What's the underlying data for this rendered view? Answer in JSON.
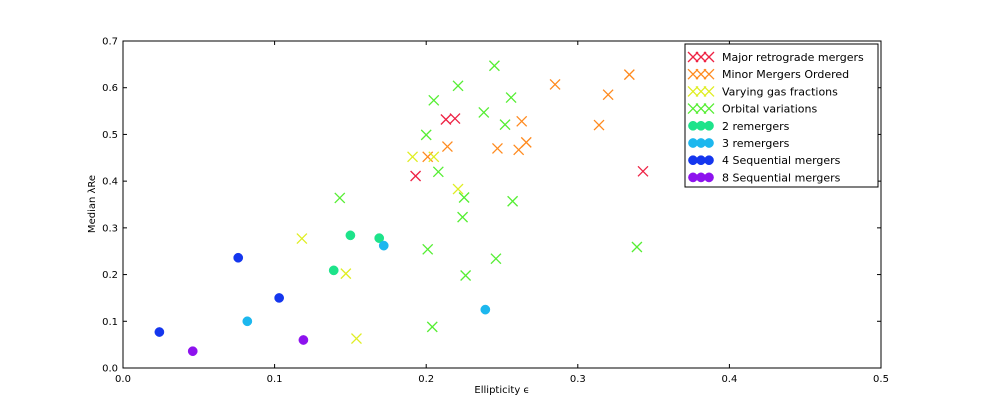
{
  "chart_data": {
    "type": "scatter",
    "title": "",
    "xlabel": "Ellipticity ϵ",
    "ylabel": "Median λRe",
    "xlim": [
      0.0,
      0.5
    ],
    "ylim": [
      0.0,
      0.7
    ],
    "x_ticks": [
      "0.0",
      "0.1",
      "0.2",
      "0.3",
      "0.4",
      "0.5"
    ],
    "y_ticks": [
      "0.0",
      "0.1",
      "0.2",
      "0.3",
      "0.4",
      "0.5",
      "0.6",
      "0.7"
    ],
    "grid": false,
    "legend_position": "top-right",
    "series": [
      {
        "name": "Major retrograde mergers",
        "marker": "x",
        "color": "#ee2244",
        "points": [
          [
            0.193,
            0.411
          ],
          [
            0.213,
            0.532
          ],
          [
            0.219,
            0.534
          ],
          [
            0.343,
            0.421
          ]
        ]
      },
      {
        "name": "Minor Mergers Ordered",
        "marker": "x",
        "color": "#ff8a1e",
        "points": [
          [
            0.201,
            0.452
          ],
          [
            0.214,
            0.474
          ],
          [
            0.247,
            0.47
          ],
          [
            0.261,
            0.467
          ],
          [
            0.263,
            0.528
          ],
          [
            0.266,
            0.483
          ],
          [
            0.285,
            0.607
          ],
          [
            0.314,
            0.52
          ],
          [
            0.32,
            0.585
          ],
          [
            0.334,
            0.628
          ]
        ]
      },
      {
        "name": "Varying gas fractions",
        "marker": "x",
        "color": "#dfee22",
        "points": [
          [
            0.118,
            0.277
          ],
          [
            0.147,
            0.202
          ],
          [
            0.154,
            0.063
          ],
          [
            0.191,
            0.452
          ],
          [
            0.205,
            0.452
          ],
          [
            0.221,
            0.383
          ]
        ]
      },
      {
        "name": "Orbital variations",
        "marker": "x",
        "color": "#55ee33",
        "points": [
          [
            0.143,
            0.364
          ],
          [
            0.2,
            0.499
          ],
          [
            0.201,
            0.254
          ],
          [
            0.204,
            0.088
          ],
          [
            0.205,
            0.573
          ],
          [
            0.208,
            0.42
          ],
          [
            0.221,
            0.604
          ],
          [
            0.224,
            0.323
          ],
          [
            0.225,
            0.365
          ],
          [
            0.226,
            0.198
          ],
          [
            0.238,
            0.547
          ],
          [
            0.245,
            0.647
          ],
          [
            0.246,
            0.234
          ],
          [
            0.252,
            0.521
          ],
          [
            0.256,
            0.579
          ],
          [
            0.257,
            0.357
          ],
          [
            0.339,
            0.259
          ]
        ]
      },
      {
        "name": "2 remergers",
        "marker": "o",
        "color": "#1de38a",
        "points": [
          [
            0.139,
            0.209
          ],
          [
            0.15,
            0.284
          ],
          [
            0.169,
            0.278
          ]
        ]
      },
      {
        "name": "3 remergers",
        "marker": "o",
        "color": "#1cb7ee",
        "points": [
          [
            0.082,
            0.1
          ],
          [
            0.172,
            0.262
          ],
          [
            0.239,
            0.125
          ]
        ]
      },
      {
        "name": "4 Sequential mergers",
        "marker": "o",
        "color": "#1436ee",
        "points": [
          [
            0.024,
            0.077
          ],
          [
            0.076,
            0.236
          ],
          [
            0.103,
            0.15
          ]
        ]
      },
      {
        "name": "8 Sequential mergers",
        "marker": "o",
        "color": "#8d12ee",
        "points": [
          [
            0.046,
            0.036
          ],
          [
            0.119,
            0.06
          ]
        ]
      }
    ]
  }
}
